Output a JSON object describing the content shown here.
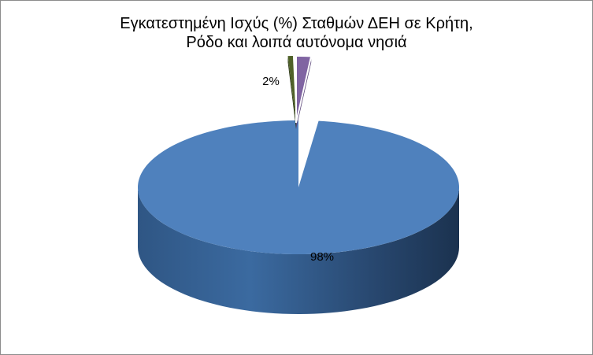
{
  "chart_data": {
    "type": "pie",
    "title_lines": [
      "Εγκατεστημένη Ισχύς (%) Σταθμών ΔΕΗ σε Κρήτη,",
      "Ρόδο και λοιπά αυτόνομα νησιά"
    ],
    "slices": [
      {
        "value": 98,
        "label": "98%",
        "color": "#4f81bd"
      },
      {
        "value": 0.5,
        "label": "",
        "color": "#4f6228"
      },
      {
        "value": 1.5,
        "label": "2%",
        "color": "#8064a2"
      }
    ],
    "three_d": true,
    "legend": "none"
  }
}
